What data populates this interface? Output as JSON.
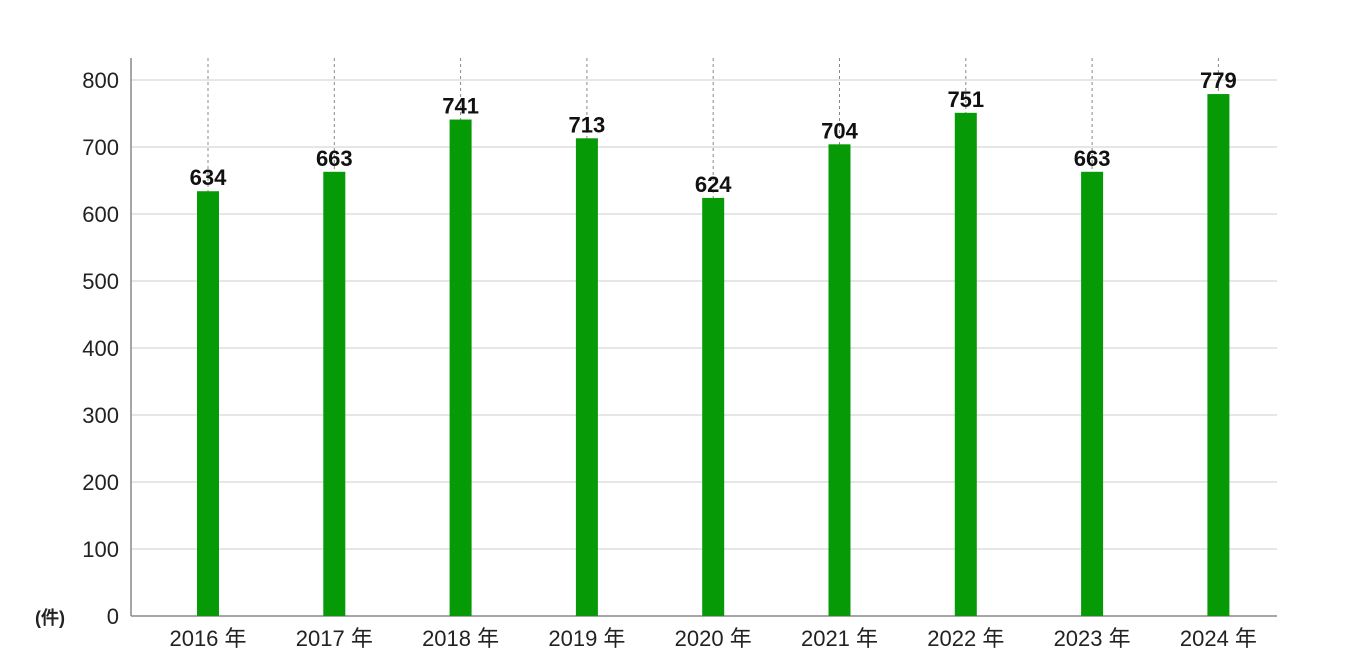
{
  "chart_data": {
    "type": "bar",
    "categories": [
      "2016 年",
      "2017 年",
      "2018 年",
      "2019 年",
      "2020 年",
      "2021 年",
      "2022 年",
      "2023 年",
      "2024 年"
    ],
    "values": [
      634,
      663,
      741,
      713,
      624,
      704,
      751,
      663,
      779
    ],
    "title": "",
    "xlabel": "",
    "ylabel": "(件)",
    "ylim": [
      0,
      800
    ],
    "yticks": [
      0,
      100,
      200,
      300,
      400,
      500,
      600,
      700,
      800
    ],
    "grid": true,
    "data_labels": true,
    "bar_color": "#079a07"
  }
}
